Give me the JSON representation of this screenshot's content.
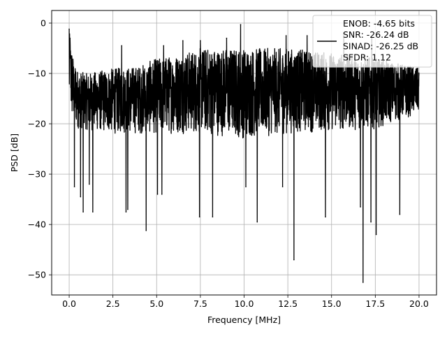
{
  "chart_data": {
    "type": "line",
    "xlabel": "Frequency [MHz]",
    "ylabel": "PSD [dB]",
    "xlim": [
      -1.0,
      21.0
    ],
    "ylim": [
      -54.0,
      2.5
    ],
    "xticks": [
      0.0,
      2.5,
      5.0,
      7.5,
      10.0,
      12.5,
      15.0,
      17.5,
      20.0
    ],
    "xtick_labels": [
      "0.0",
      "2.5",
      "5.0",
      "7.5",
      "10.0",
      "12.5",
      "15.0",
      "17.5",
      "20.0"
    ],
    "yticks": [
      0,
      -10,
      -20,
      -30,
      -40,
      -50
    ],
    "ytick_labels": [
      "0",
      "−10",
      "−20",
      "−30",
      "−40",
      "−50"
    ],
    "grid": true,
    "legend_location": "upper right",
    "series": [
      {
        "name": "ENOB: -4.65 bits\nSNR: -26.24 dB\nSINAD: -26.25 dB\nSFDR: 1.12",
        "color": "#000000",
        "noise_band_upper": [
          [
            0.0,
            -1.5
          ],
          [
            0.2,
            -6.0
          ],
          [
            0.5,
            -9.5
          ],
          [
            1.0,
            -10.0
          ],
          [
            2.5,
            -9.0
          ],
          [
            4.0,
            -8.5
          ],
          [
            5.0,
            -7.0
          ],
          [
            6.5,
            -6.0
          ],
          [
            7.5,
            -5.0
          ],
          [
            10.0,
            -5.0
          ],
          [
            12.5,
            -5.0
          ],
          [
            14.0,
            -5.5
          ],
          [
            15.5,
            -6.0
          ],
          [
            17.5,
            -7.0
          ],
          [
            19.5,
            -8.5
          ],
          [
            20.0,
            -9.0
          ]
        ],
        "noise_band_lower": [
          [
            0.0,
            -18.0
          ],
          [
            0.2,
            -20.0
          ],
          [
            0.5,
            -21.0
          ],
          [
            2.5,
            -22.0
          ],
          [
            5.0,
            -22.0
          ],
          [
            7.5,
            -22.0
          ],
          [
            10.0,
            -23.0
          ],
          [
            12.5,
            -22.0
          ],
          [
            15.0,
            -21.5
          ],
          [
            17.5,
            -21.0
          ],
          [
            20.0,
            -18.0
          ]
        ],
        "peaks": [
          [
            0.0,
            -1.2
          ],
          [
            0.05,
            -3.0
          ],
          [
            3.0,
            -4.5
          ],
          [
            5.4,
            -4.5
          ],
          [
            6.5,
            -3.5
          ],
          [
            7.5,
            -3.5
          ],
          [
            9.0,
            -3.0
          ],
          [
            9.8,
            -0.3
          ],
          [
            12.4,
            -2.5
          ],
          [
            13.6,
            -2.5
          ],
          [
            15.7,
            -2.0
          ],
          [
            17.3,
            -3.0
          ]
        ],
        "dips": [
          [
            0.3,
            -32.5
          ],
          [
            0.65,
            -34.5
          ],
          [
            0.8,
            -37.5
          ],
          [
            1.15,
            -32.0
          ],
          [
            1.35,
            -37.5
          ],
          [
            3.25,
            -37.5
          ],
          [
            3.35,
            -37.0
          ],
          [
            4.4,
            -41.2
          ],
          [
            5.05,
            -34.0
          ],
          [
            5.3,
            -34.0
          ],
          [
            7.45,
            -38.5
          ],
          [
            8.2,
            -38.5
          ],
          [
            10.1,
            -32.5
          ],
          [
            10.75,
            -39.5
          ],
          [
            12.2,
            -32.5
          ],
          [
            12.85,
            -47.0
          ],
          [
            14.65,
            -38.5
          ],
          [
            16.65,
            -36.5
          ],
          [
            16.8,
            -51.5
          ],
          [
            17.25,
            -39.5
          ],
          [
            17.55,
            -42.0
          ],
          [
            18.9,
            -38.0
          ]
        ]
      }
    ]
  }
}
